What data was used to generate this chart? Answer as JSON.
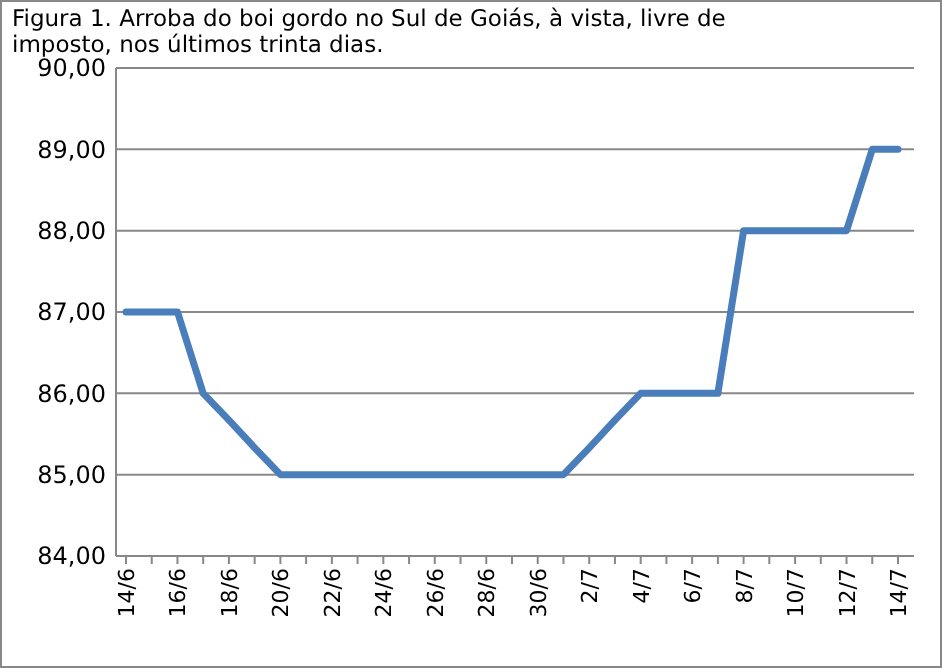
{
  "chart_data": {
    "type": "line",
    "title": "Figura 1. Arroba do boi gordo no Sul de Goiás, à vista, livre de imposto, nos últimos trinta dias.",
    "categories": [
      "14/6",
      null,
      "16/6",
      null,
      "18/6",
      null,
      "20/6",
      null,
      "22/6",
      null,
      "24/6",
      null,
      "26/6",
      null,
      "28/6",
      null,
      "30/6",
      null,
      "2/7",
      null,
      "4/7",
      null,
      "6/7",
      null,
      "8/7",
      null,
      "10/7",
      null,
      "12/7",
      null,
      "14/7"
    ],
    "series": [
      {
        "color": "#4a7ebb",
        "values": [
          87,
          87,
          87,
          86,
          85.67,
          85.33,
          85,
          85,
          85,
          85,
          85,
          85,
          85,
          85,
          85,
          85,
          85,
          85,
          85.33,
          85.67,
          86,
          86,
          86,
          86,
          88,
          88,
          88,
          88,
          88,
          89,
          89
        ]
      }
    ],
    "ylim": [
      84,
      90
    ],
    "yticks": [
      {
        "value": 84,
        "label": "84,00"
      },
      {
        "value": 85,
        "label": "85,00"
      },
      {
        "value": 86,
        "label": "86,00"
      },
      {
        "value": 87,
        "label": "87,00"
      },
      {
        "value": 88,
        "label": "88,00"
      },
      {
        "value": 89,
        "label": "89,00"
      },
      {
        "value": 90,
        "label": "90,00"
      }
    ],
    "grid": "y",
    "marker": "none",
    "line_style": "solid"
  }
}
